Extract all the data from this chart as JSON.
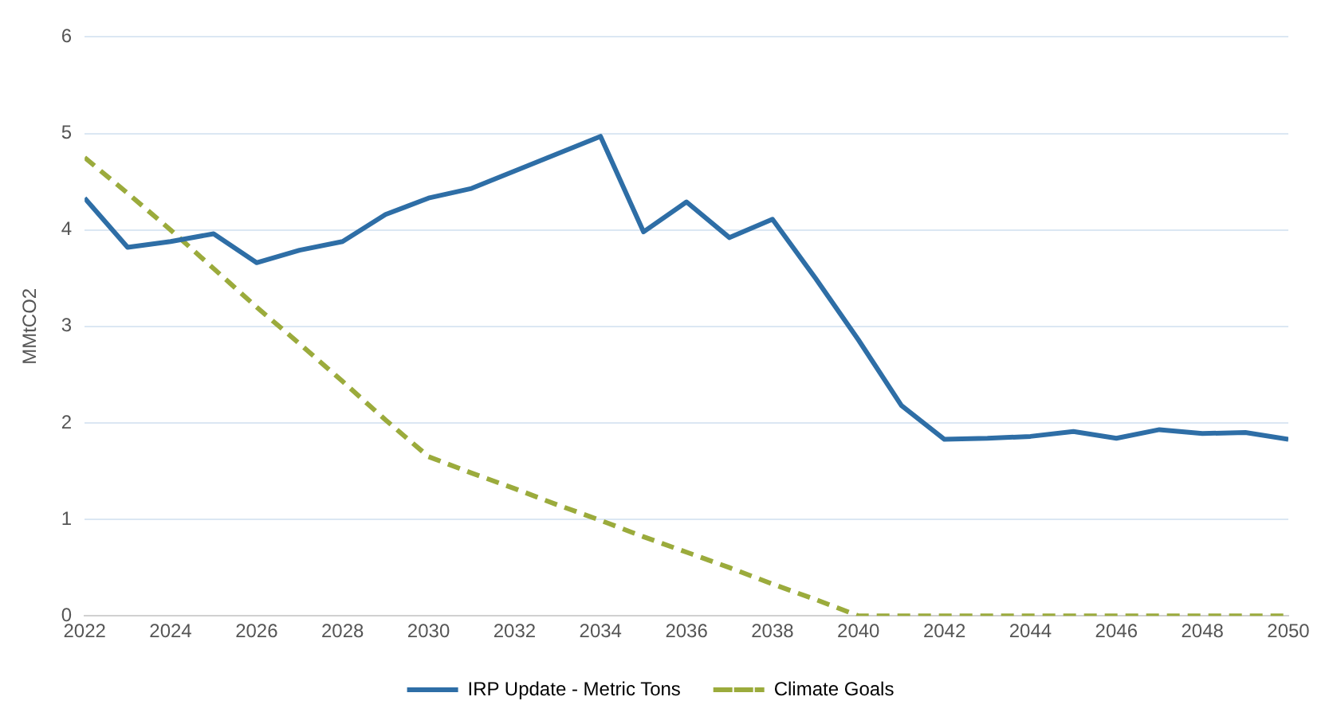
{
  "chart_data": {
    "type": "line",
    "ylabel": "MMtCO2",
    "x": [
      2022,
      2023,
      2024,
      2025,
      2026,
      2027,
      2028,
      2029,
      2030,
      2031,
      2032,
      2033,
      2034,
      2035,
      2036,
      2037,
      2038,
      2039,
      2040,
      2041,
      2042,
      2043,
      2044,
      2045,
      2046,
      2047,
      2048,
      2049,
      2050
    ],
    "series": [
      {
        "name": "IRP Update - Metric Tons",
        "color": "#2e6ea6",
        "line_style": "solid",
        "values": [
          4.33,
          3.82,
          3.88,
          3.96,
          3.66,
          3.79,
          3.88,
          4.16,
          4.33,
          4.43,
          4.61,
          4.79,
          4.97,
          3.98,
          4.29,
          3.92,
          4.11,
          3.5,
          2.86,
          2.18,
          1.83,
          1.84,
          1.86,
          1.91,
          1.84,
          1.93,
          1.89,
          1.9,
          1.83
        ]
      },
      {
        "name": "Climate Goals",
        "color": "#9bab3c",
        "line_style": "dashed",
        "values": [
          4.75,
          4.38,
          4.0,
          3.6,
          3.2,
          2.82,
          2.43,
          2.03,
          1.65,
          1.48,
          1.32,
          1.15,
          0.99,
          0.82,
          0.66,
          0.5,
          0.33,
          0.17,
          0,
          0,
          0,
          0,
          0,
          0,
          0,
          0,
          0,
          0,
          0
        ]
      }
    ],
    "xlim": [
      2022,
      2050
    ],
    "xticks": [
      2022,
      2024,
      2026,
      2028,
      2030,
      2032,
      2034,
      2036,
      2038,
      2040,
      2042,
      2044,
      2046,
      2048,
      2050
    ],
    "ylim": [
      0,
      6
    ],
    "yticks": [
      0,
      1,
      2,
      3,
      4,
      5,
      6
    ],
    "grid": "y",
    "legend": "bottom",
    "marker": "none"
  }
}
